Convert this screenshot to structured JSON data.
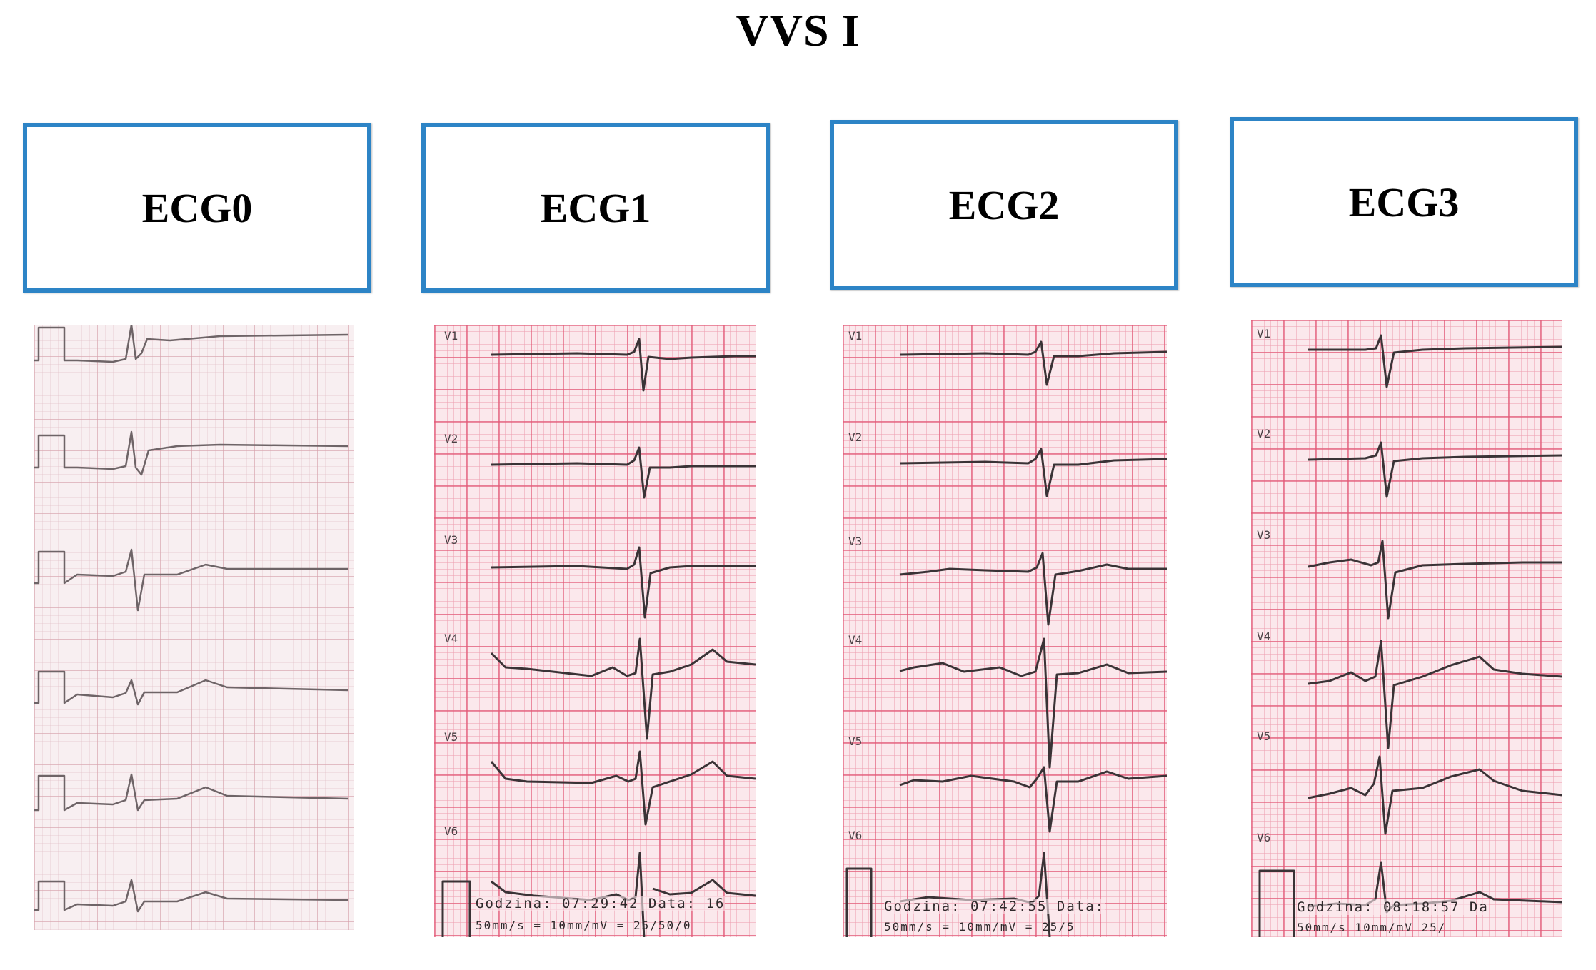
{
  "title": "VVS I",
  "panels": [
    {
      "id": "ecg0",
      "label": "ECG0",
      "leads": [],
      "footer": "",
      "footer2": ""
    },
    {
      "id": "ecg1",
      "label": "ECG1",
      "leads": [
        "V1",
        "V2",
        "V3",
        "V4",
        "V5",
        "V6"
      ],
      "footer": "Godzina: 07:29:42  Data: 16",
      "footer2": "50mm/s = 10mm/mV = 25/50/0"
    },
    {
      "id": "ecg2",
      "label": "ECG2",
      "leads": [
        "V1",
        "V2",
        "V3",
        "V4",
        "V5",
        "V6"
      ],
      "footer": "Godzina: 07:42:55  Data:",
      "footer2": "50mm/s = 10mm/mV = 25/5"
    },
    {
      "id": "ecg3",
      "label": "ECG3",
      "leads": [
        "V1",
        "V2",
        "V3",
        "V4",
        "V5",
        "V6"
      ],
      "footer": "Godzina: 08:18:57  Da",
      "footer2": "50mm/s  10mm/mV  25/"
    }
  ],
  "colors": {
    "box_border": "#2d84c6",
    "paper_pink": "#fbe8ec",
    "grid_major": "#e25876",
    "trace": "#3a3336"
  }
}
